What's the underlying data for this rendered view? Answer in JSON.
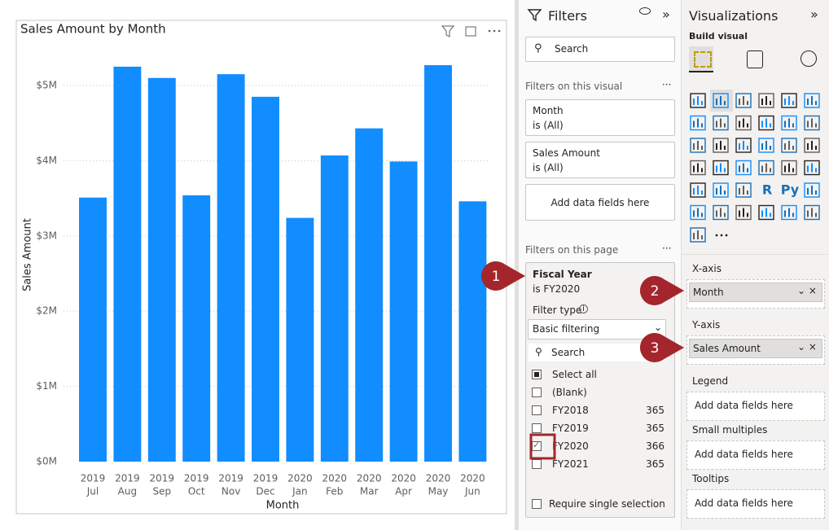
{
  "chart_data": {
    "type": "bar",
    "title": "Sales Amount by Month",
    "x_label": "Month",
    "y_label": "Sales Amount",
    "categories": [
      [
        "2019",
        "Jul"
      ],
      [
        "2019",
        "Aug"
      ],
      [
        "2019",
        "Sep"
      ],
      [
        "2019",
        "Oct"
      ],
      [
        "2019",
        "Nov"
      ],
      [
        "2019",
        "Dec"
      ],
      [
        "2020",
        "Jan"
      ],
      [
        "2020",
        "Feb"
      ],
      [
        "2020",
        "Mar"
      ],
      [
        "2020",
        "Apr"
      ],
      [
        "2020",
        "May"
      ],
      [
        "2020",
        "Jun"
      ]
    ],
    "values": [
      3510000,
      5250000,
      5100000,
      3540000,
      5150000,
      4850000,
      3240000,
      4070000,
      4430000,
      3990000,
      5270000,
      3460000
    ],
    "color": "#118dff",
    "ylim": [
      0,
      5500000
    ],
    "yticks": [
      {
        "value": 0,
        "label": "$0M"
      },
      {
        "value": 1000000,
        "label": "$1M"
      },
      {
        "value": 2000000,
        "label": "$2M"
      },
      {
        "value": 3000000,
        "label": "$3M"
      },
      {
        "value": 4000000,
        "label": "$4M"
      },
      {
        "value": 5000000,
        "label": "$5M"
      }
    ],
    "grid": true
  },
  "filters": {
    "title": "Filters",
    "search": "Search",
    "visual_section": "Filters on this visual",
    "visual_filters": [
      {
        "field": "Month",
        "state": "is (All)"
      },
      {
        "field": "Sales Amount",
        "state": "is (All)"
      }
    ],
    "add_fields": "Add data fields here",
    "page_section": "Filters on this page",
    "page_filter": {
      "field": "Fiscal Year",
      "state": "is FY2020",
      "filter_type_label": "Filter type",
      "filter_type": "Basic filtering",
      "search": "Search",
      "items": [
        {
          "label": "Select all",
          "check": "partial"
        },
        {
          "label": "(Blank)",
          "check": "unchecked"
        },
        {
          "label": "FY2018",
          "count": 365,
          "check": "unchecked"
        },
        {
          "label": "FY2019",
          "count": 365,
          "check": "unchecked"
        },
        {
          "label": "FY2020",
          "count": 366,
          "check": "checked"
        },
        {
          "label": "FY2021",
          "count": 365,
          "check": "unchecked"
        }
      ],
      "require_single": "Require single selection"
    }
  },
  "visualizations": {
    "title": "Visualizations",
    "build": "Build visual",
    "script_icons": [
      "R",
      "Py"
    ],
    "wells": [
      {
        "label": "X-axis",
        "field": "Month"
      },
      {
        "label": "Y-axis",
        "field": "Sales Amount"
      },
      {
        "label": "Legend",
        "placeholder": "Add data fields here"
      },
      {
        "label": "Small multiples",
        "placeholder": "Add data fields here"
      },
      {
        "label": "Tooltips",
        "placeholder": "Add data fields here"
      }
    ]
  },
  "callouts": [
    "1",
    "2",
    "3"
  ]
}
